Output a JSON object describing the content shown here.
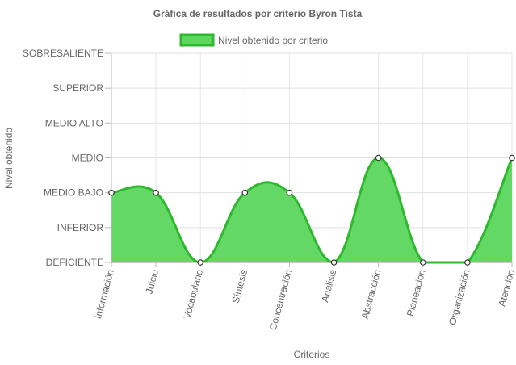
{
  "chart_data": {
    "type": "area",
    "title": "Gráfica de resultados por criterio Byron Tista",
    "xlabel": "Criterios",
    "ylabel": "Nivel obtenido",
    "y_levels": [
      "DEFICIENTE",
      "INFERIOR",
      "MEDIO BAJO",
      "MEDIO",
      "MEDIO ALTO",
      "SUPERIOR",
      "SOBRESALIENTE"
    ],
    "ylim": [
      0,
      6
    ],
    "categories": [
      "Información",
      "Juicio",
      "Vocabulario",
      "Síntesis",
      "Concentración",
      "Análisis",
      "Abstracción",
      "Planeación",
      "Organización",
      "Atención"
    ],
    "legend_position": "top",
    "grid": true,
    "series": [
      {
        "name": "Nivel obtenido por criterio",
        "values": [
          2,
          2,
          0,
          2,
          2,
          0,
          3,
          0,
          0,
          3
        ],
        "value_labels": [
          "MEDIO BAJO",
          "MEDIO BAJO",
          "DEFICIENTE",
          "MEDIO BAJO",
          "MEDIO BAJO",
          "DEFICIENTE",
          "MEDIO",
          "DEFICIENTE",
          "DEFICIENTE",
          "MEDIO"
        ],
        "fill_color": "#5cd65c",
        "line_color": "#2eb82e"
      }
    ]
  }
}
